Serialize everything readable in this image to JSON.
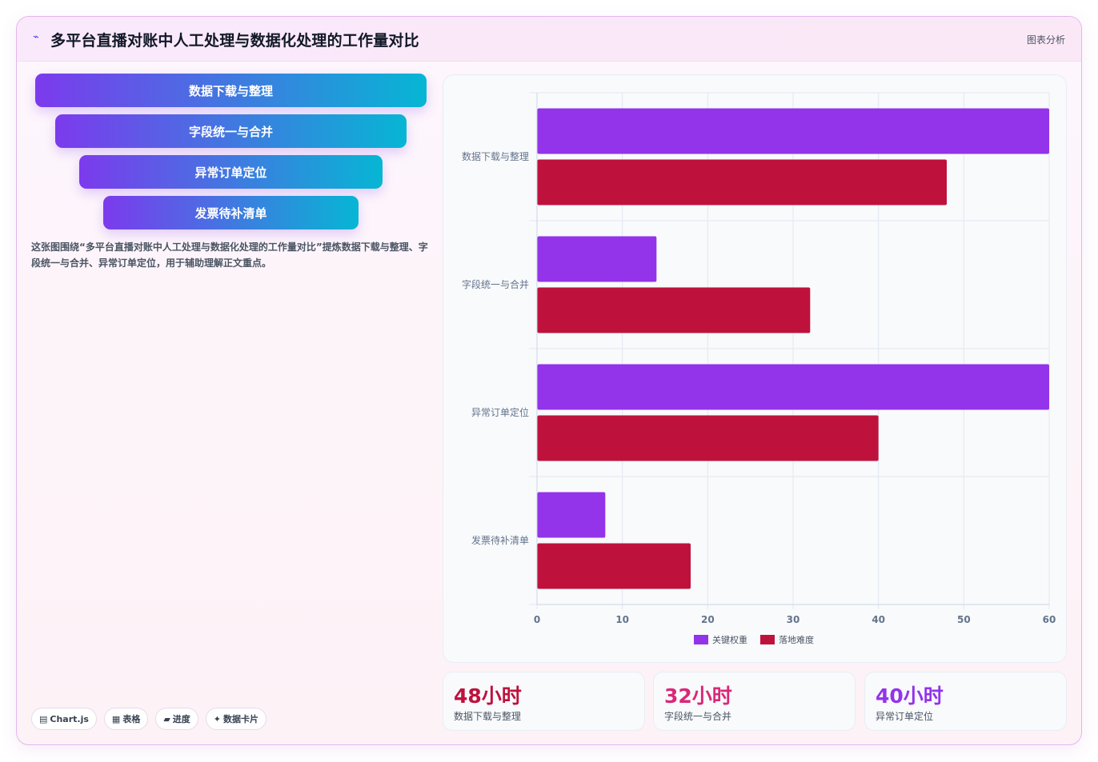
{
  "header": {
    "icon": "chart-wave-icon",
    "title": "多平台直播对账中人工处理与数据化处理的工作量对比",
    "tag": "图表分析"
  },
  "funnel": [
    {
      "label": "数据下载与整理"
    },
    {
      "label": "字段统一与合并"
    },
    {
      "label": "异常订单定位"
    },
    {
      "label": "发票待补清单"
    }
  ],
  "description": "这张图围绕“多平台直播对账中人工处理与数据化处理的工作量对比”提炼数据下载与整理、字段统一与合并、异常订单定位，用于辅助理解正文重点。",
  "chips": [
    {
      "icon": "▤",
      "label": "Chart.js"
    },
    {
      "icon": "▦",
      "label": "表格"
    },
    {
      "icon": "▰",
      "label": "进度"
    },
    {
      "icon": "✦",
      "label": "数据卡片"
    }
  ],
  "chart_data": {
    "type": "bar",
    "orientation": "horizontal",
    "categories": [
      "数据下载与整理",
      "字段统一与合并",
      "异常订单定位",
      "发票待补清单"
    ],
    "series": [
      {
        "name": "关键权重",
        "color": "#9333ea",
        "values": [
          60,
          14,
          60,
          8
        ]
      },
      {
        "name": "落地难度",
        "color": "#be123c",
        "values": [
          48,
          32,
          40,
          18
        ]
      }
    ],
    "xlim": [
      0,
      60
    ],
    "xticks": [
      "0",
      "10",
      "20",
      "30",
      "40",
      "50",
      "60"
    ],
    "grid": true,
    "legend_position": "bottom"
  },
  "stats": [
    {
      "value": "48小时",
      "label": "数据下载与整理",
      "color": "#be123c"
    },
    {
      "value": "32小时",
      "label": "字段统一与合并",
      "color": "#db2777"
    },
    {
      "value": "40小时",
      "label": "异常订单定位",
      "color": "#9333ea"
    }
  ]
}
